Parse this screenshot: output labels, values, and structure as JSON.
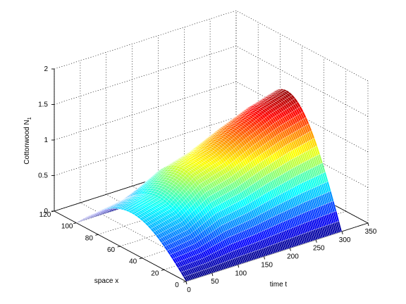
{
  "chart_data": {
    "type": "surface-3d",
    "title": "",
    "xlabel": "time t",
    "ylabel": "space x",
    "zlabel_main": "Cottonwood N",
    "zlabel_sub": "1",
    "xlim": [
      0,
      350
    ],
    "ylim": [
      0,
      120
    ],
    "zlim": [
      0,
      2
    ],
    "xticks": [
      0,
      50,
      100,
      150,
      200,
      250,
      300,
      350
    ],
    "yticks": [
      0,
      20,
      40,
      60,
      80,
      100,
      120
    ],
    "zticks": [
      0,
      0.5,
      1,
      1.5,
      2
    ],
    "grid": true,
    "colormap": "jet",
    "surface": {
      "t_range": [
        0,
        300
      ],
      "x_range": [
        0,
        100
      ],
      "peak_profile_t": [
        0,
        50,
        100,
        150,
        200,
        250,
        300
      ],
      "peak_profile_z": [
        0.55,
        0.65,
        0.95,
        1.08,
        1.28,
        1.45,
        1.57
      ],
      "profile_shape": "sin(pi*x/100)"
    }
  }
}
